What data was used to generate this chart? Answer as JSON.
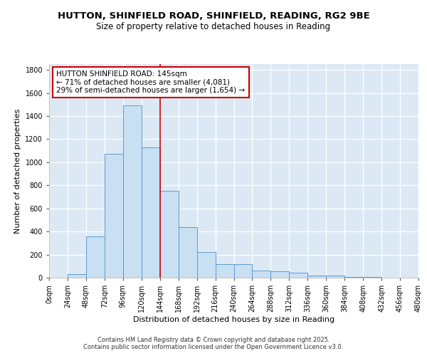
{
  "title_line1": "HUTTON, SHINFIELD ROAD, SHINFIELD, READING, RG2 9BE",
  "title_line2": "Size of property relative to detached houses in Reading",
  "xlabel": "Distribution of detached houses by size in Reading",
  "ylabel": "Number of detached properties",
  "bin_edges": [
    0,
    24,
    48,
    72,
    96,
    120,
    144,
    168,
    192,
    216,
    240,
    264,
    288,
    312,
    336,
    360,
    384,
    408,
    432,
    456,
    480
  ],
  "bar_heights": [
    0,
    30,
    360,
    1070,
    1490,
    1130,
    750,
    440,
    225,
    115,
    115,
    60,
    55,
    45,
    20,
    20,
    5,
    5,
    2,
    0
  ],
  "bar_facecolor": "#c9dff2",
  "bar_edgecolor": "#5b9bd5",
  "plot_bg_color": "#dce9f5",
  "fig_bg_color": "#ffffff",
  "grid_color": "#ffffff",
  "vline_x": 144,
  "vline_color": "#cc0000",
  "annotation_text": "HUTTON SHINFIELD ROAD: 145sqm\n← 71% of detached houses are smaller (4,081)\n29% of semi-detached houses are larger (1,654) →",
  "annotation_box_facecolor": "#ffffff",
  "annotation_box_edgecolor": "#cc0000",
  "ylim": [
    0,
    1850
  ],
  "yticks": [
    0,
    200,
    400,
    600,
    800,
    1000,
    1200,
    1400,
    1600,
    1800
  ],
  "xtick_labels": [
    "0sqm",
    "24sqm",
    "48sqm",
    "72sqm",
    "96sqm",
    "120sqm",
    "144sqm",
    "168sqm",
    "192sqm",
    "216sqm",
    "240sqm",
    "264sqm",
    "288sqm",
    "312sqm",
    "336sqm",
    "360sqm",
    "384sqm",
    "408sqm",
    "432sqm",
    "456sqm",
    "480sqm"
  ],
  "footer_text": "Contains HM Land Registry data © Crown copyright and database right 2025.\nContains public sector information licensed under the Open Government Licence v3.0.",
  "title_fontsize": 9.5,
  "subtitle_fontsize": 8.5,
  "axis_label_fontsize": 8,
  "tick_fontsize": 7,
  "annotation_fontsize": 7.5,
  "footer_fontsize": 6
}
